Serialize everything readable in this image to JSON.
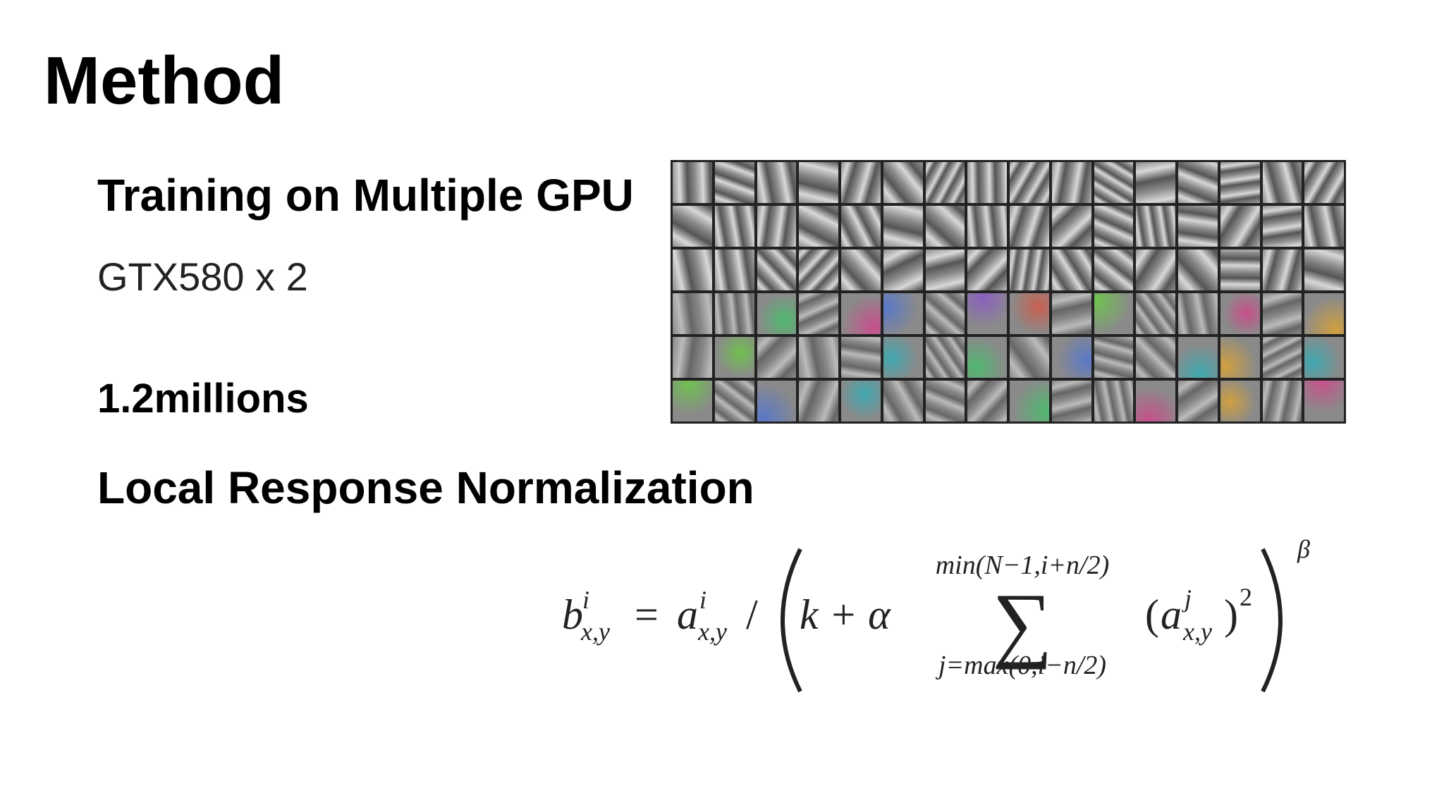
{
  "header": {
    "title": "Method"
  },
  "sections": [
    {
      "heading": "Training on Multiple GPU",
      "text": "GTX580 x 2"
    },
    {
      "heading": "1.2millions"
    },
    {
      "heading": "Local Response Normalization"
    }
  ],
  "formula": {
    "lhs": {
      "base": "b",
      "sup": "i",
      "sub": "x,y"
    },
    "equals": "=",
    "numerator": {
      "base": "a",
      "sup": "i",
      "sub": "x,y"
    },
    "slash": "/",
    "k_term": "k + α",
    "sum": "∑",
    "sum_upper": "min(N−1,i+n/2)",
    "sum_lower": "j=max(0,i−n/2)",
    "term_open": "(",
    "term": {
      "base": "a",
      "sup": "j",
      "sub": "x,y"
    },
    "term_close": ")",
    "square": "2",
    "exponent": "β"
  }
}
